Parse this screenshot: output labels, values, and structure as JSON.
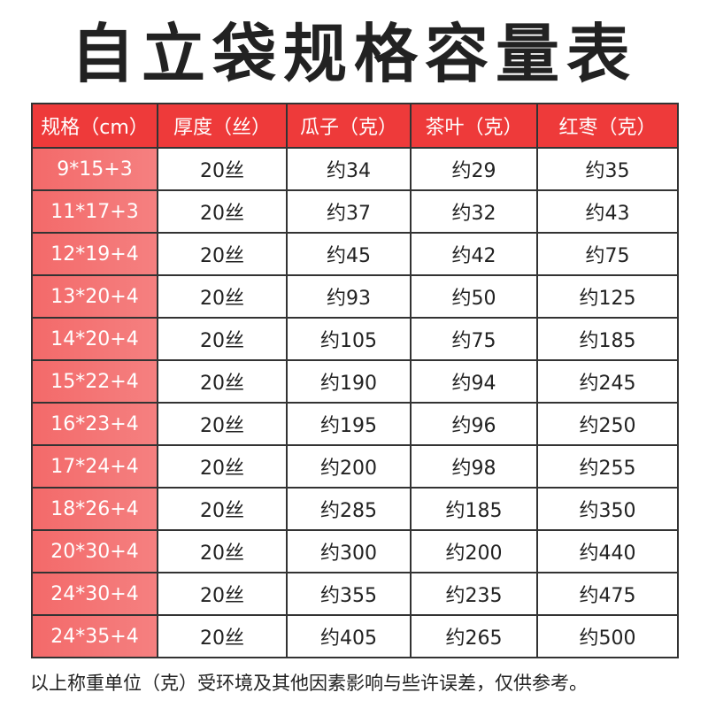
{
  "title": "自立袋规格容量表",
  "headers": [
    "规格（cm）",
    "厚度（丝）",
    "瓜子（克）",
    "茶叶（克）",
    "红枣（克）"
  ],
  "rows": [
    [
      "9*15+3",
      "20丝",
      "约34",
      "约29",
      "约35"
    ],
    [
      "11*17+3",
      "20丝",
      "约37",
      "约32",
      "约43"
    ],
    [
      "12*19+4",
      "20丝",
      "约45",
      "约42",
      "约75"
    ],
    [
      "13*20+4",
      "20丝",
      "约93",
      "约50",
      "约125"
    ],
    [
      "14*20+4",
      "20丝",
      "约105",
      "约75",
      "约185"
    ],
    [
      "15*22+4",
      "20丝",
      "约190",
      "约94",
      "约245"
    ],
    [
      "16*23+4",
      "20丝",
      "约195",
      "约96",
      "约250"
    ],
    [
      "17*24+4",
      "20丝",
      "约200",
      "约98",
      "约255"
    ],
    [
      "18*26+4",
      "20丝",
      "约285",
      "约185",
      "约350"
    ],
    [
      "20*30+4",
      "20丝",
      "约300",
      "约200",
      "约440"
    ],
    [
      "24*30+4",
      "20丝",
      "约355",
      "约235",
      "约475"
    ],
    [
      "24*35+4",
      "20丝",
      "约405",
      "约265",
      "约500"
    ]
  ],
  "note": "以上称重单位（克）受环境及其他因素影响与些许误差，仅供参考。",
  "colors": {
    "header": "#ee3a3a",
    "spec_cell": "#f36a6a",
    "text": "#222222"
  }
}
